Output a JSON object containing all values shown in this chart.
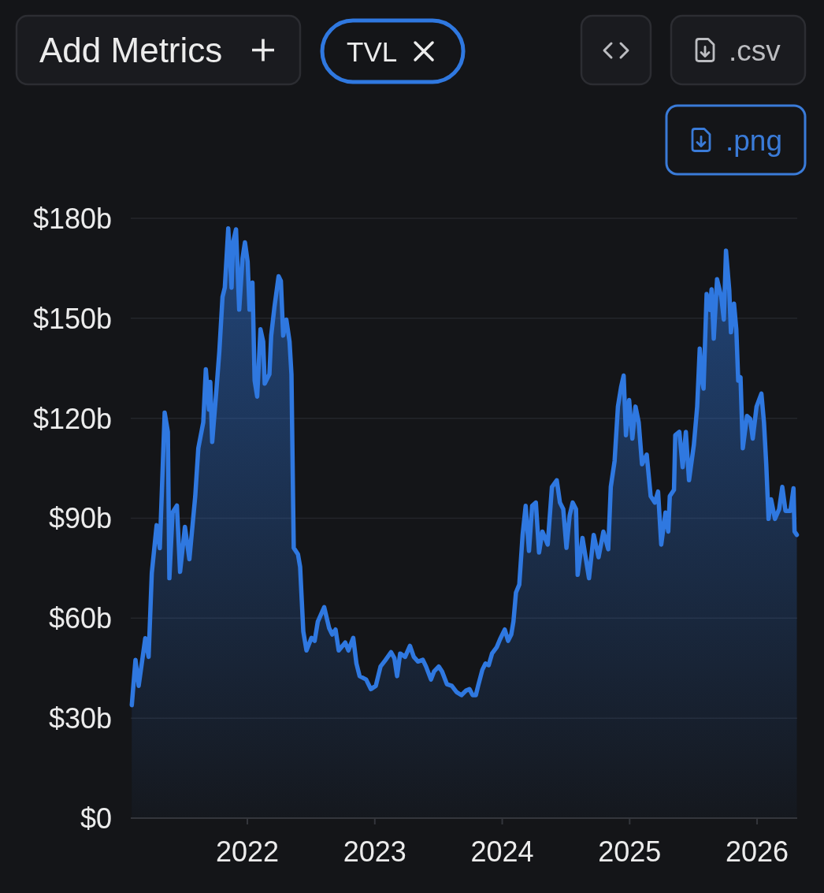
{
  "chart_data": {
    "type": "area",
    "annotations": [
      "Add Metrics",
      ".csv",
      ".png"
    ],
    "x": [
      2021.093,
      2021.122,
      2021.147,
      2021.199,
      2021.225,
      2021.25,
      2021.288,
      2021.313,
      2021.351,
      2021.376,
      2021.388,
      2021.413,
      2021.447,
      2021.472,
      2021.51,
      2021.545,
      2021.591,
      2021.615,
      2021.654,
      2021.674,
      2021.699,
      2021.709,
      2021.724,
      2021.755,
      2021.78,
      2021.805,
      2021.823,
      2021.85,
      2021.876,
      2021.888,
      2021.911,
      2021.936,
      2021.962,
      2021.981,
      2022.002,
      2022.017,
      2022.04,
      2022.057,
      2022.077,
      2022.103,
      2022.124,
      2022.136,
      2022.173,
      2022.187,
      2022.213,
      2022.245,
      2022.263,
      2022.281,
      2022.306,
      2022.331,
      2022.346,
      2022.359,
      2022.364,
      2022.397,
      2022.414,
      2022.439,
      2022.464,
      2022.503,
      2022.528,
      2022.553,
      2022.603,
      2022.642,
      2022.666,
      2022.692,
      2022.717,
      2022.768,
      2022.793,
      2022.831,
      2022.856,
      2022.881,
      2022.932,
      2022.969,
      2023.008,
      2023.045,
      2023.083,
      2023.128,
      2023.154,
      2023.175,
      2023.199,
      2023.238,
      2023.276,
      2023.306,
      2023.339,
      2023.377,
      2023.402,
      2023.441,
      2023.465,
      2023.502,
      2023.528,
      2023.566,
      2023.604,
      2023.642,
      2023.68,
      2023.717,
      2023.743,
      2023.768,
      2023.793,
      2023.811,
      2023.844,
      2023.869,
      2023.894,
      2023.92,
      2023.957,
      2023.983,
      2024.02,
      2024.046,
      2024.071,
      2024.088,
      2024.108,
      2024.134,
      2024.16,
      2024.184,
      2024.21,
      2024.235,
      2024.264,
      2024.289,
      2024.315,
      2024.357,
      2024.39,
      2024.428,
      2024.453,
      2024.479,
      2024.504,
      2024.529,
      2024.553,
      2024.579,
      2024.592,
      2024.63,
      2024.681,
      2024.718,
      2024.756,
      2024.794,
      2024.832,
      2024.852,
      2024.882,
      2024.908,
      2024.933,
      2024.953,
      2024.971,
      2024.996,
      2025.021,
      2025.046,
      2025.071,
      2025.097,
      2025.134,
      2025.165,
      2025.198,
      2025.223,
      2025.248,
      2025.281,
      2025.303,
      2025.315,
      2025.348,
      2025.358,
      2025.39,
      2025.416,
      2025.441,
      2025.466,
      2025.504,
      2025.53,
      2025.55,
      2025.567,
      2025.58,
      2025.604,
      2025.63,
      2025.643,
      2025.66,
      2025.686,
      2025.719,
      2025.739,
      2025.756,
      2025.782,
      2025.795,
      2025.819,
      2025.837,
      2025.852,
      2025.87,
      2025.888,
      2025.921,
      2025.946,
      2025.966,
      2025.996,
      2026.034,
      2026.054,
      2026.072,
      2026.09,
      2026.11,
      2026.14,
      2026.173,
      2026.198,
      2026.223,
      2026.262,
      2026.286,
      2026.294,
      2026.312
    ],
    "series": [
      {
        "name": "TVL",
        "color": "#2f78e0",
        "values": [
          33.9,
          47.5,
          39.7,
          54,
          48.4,
          73.5,
          87.9,
          81,
          121.7,
          115.9,
          72,
          91.7,
          93.8,
          73.9,
          87.4,
          77.7,
          96.6,
          111,
          118.8,
          134.7,
          122.6,
          130.9,
          112.9,
          127.4,
          140,
          156.4,
          159.2,
          177,
          159.2,
          172.8,
          176.7,
          152.6,
          168,
          172.8,
          167,
          152.6,
          160.7,
          131.3,
          126.5,
          146.7,
          143,
          130.4,
          133.2,
          144.8,
          153.5,
          162.6,
          161.2,
          144.8,
          149.6,
          143,
          133.2,
          94.7,
          81.1,
          79.2,
          75.4,
          56,
          50.3,
          54.1,
          53.2,
          59,
          63.3,
          57,
          55.1,
          56.6,
          50.3,
          52.7,
          50.3,
          54.1,
          46.4,
          42.6,
          41.6,
          38.7,
          39.7,
          45.5,
          47.4,
          49.8,
          48,
          42.6,
          49.4,
          48.4,
          51.7,
          48.4,
          47,
          47.5,
          45.5,
          41.6,
          44,
          45.5,
          44,
          40.2,
          39.7,
          37.8,
          36.9,
          38.3,
          38.7,
          36.9,
          36.9,
          39.7,
          44.5,
          46.4,
          45.9,
          49.4,
          51.3,
          53.7,
          56.6,
          53.2,
          55.1,
          59,
          67.7,
          70.1,
          85,
          93.7,
          80.2,
          93.7,
          94.7,
          79.7,
          86,
          82.1,
          99.4,
          101.4,
          94.7,
          92.7,
          81.1,
          90.8,
          94.7,
          92.7,
          73,
          84.1,
          72,
          85,
          78.3,
          86,
          80.7,
          99.4,
          107.2,
          123.5,
          129.4,
          132.8,
          114.9,
          125.5,
          113.9,
          123.5,
          118.8,
          106.2,
          109.1,
          96.6,
          94.7,
          98,
          82.1,
          91.7,
          86,
          96.6,
          98.5,
          114.9,
          115.9,
          105.3,
          115.9,
          101.4,
          112,
          123.5,
          140.9,
          131.3,
          128.9,
          157.3,
          152.5,
          158.7,
          143.9,
          161.7,
          156.4,
          149.6,
          170.3,
          158.3,
          145.8,
          154.4,
          146.7,
          131.3,
          132.3,
          111,
          120.7,
          119.8,
          113.9,
          123.5,
          127.4,
          118.8,
          106.2,
          89.8,
          95.7,
          89.8,
          92.7,
          99.4,
          92.2,
          92.2,
          99,
          86,
          85
        ]
      }
    ],
    "xlim": [
      2021.085,
      2026.315
    ],
    "xticks": [
      2022,
      2023,
      2024,
      2025,
      2026
    ],
    "ylim": [
      0,
      180
    ],
    "yticks": [
      {
        "value": 0,
        "label": "$0"
      },
      {
        "value": 30,
        "label": "$30b"
      },
      {
        "value": 60,
        "label": "$60b"
      },
      {
        "value": 90,
        "label": "$90b"
      },
      {
        "value": 120,
        "label": "$120b"
      },
      {
        "value": 150,
        "label": "$150b"
      },
      {
        "value": 180,
        "label": "$180b"
      }
    ],
    "grid": "y",
    "legend": "top left"
  }
}
